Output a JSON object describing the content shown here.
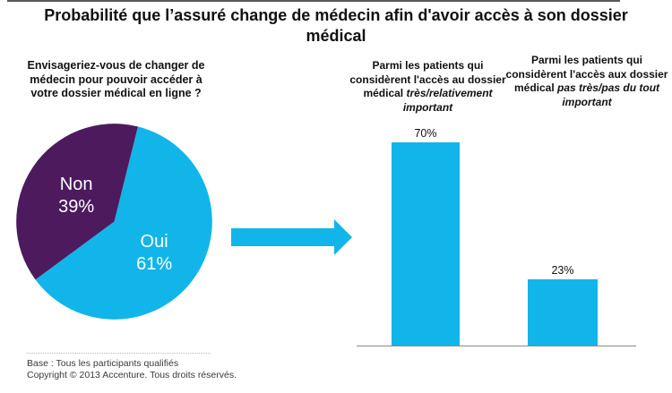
{
  "title": "Probabilité que l’assuré change de médecin afin d'avoir accès à son dossier médical",
  "colors": {
    "cyan": "#12b5e9",
    "purple": "#4d1a5e",
    "axis": "#8a8a8a"
  },
  "arrow": {
    "meaning": "leads-to",
    "color": "#12b5e9"
  },
  "chart_data": [
    {
      "type": "pie",
      "title": "Envisageriez-vous de changer de médecin pour pouvoir accéder à votre dossier médical en ligne ?",
      "start_angle_deg": 14,
      "legend_position": "inside",
      "slices": [
        {
          "label": "Oui",
          "value": 61,
          "display": "61%",
          "color": "#12b5e9"
        },
        {
          "label": "Non",
          "value": 39,
          "display": "39%",
          "color": "#4d1a5e"
        }
      ]
    },
    {
      "type": "bar",
      "bar_color": "#12b5e9",
      "ylim": [
        0,
        100
      ],
      "grid": false,
      "categories": [
        {
          "regular": "Parmi les patients qui considèrent l'accès au dossier médical ",
          "italic": "très/relativement important"
        },
        {
          "regular": "Parmi les patients qui considèrent l'accès aux dossier médical ",
          "italic": "pas très/pas du tout important"
        }
      ],
      "values": [
        70,
        23
      ],
      "value_labels": [
        "70%",
        "23%"
      ]
    }
  ],
  "footer": {
    "base": "Base : Tous les participants qualifiés",
    "copyright": "Copyright © 2013 Accenture. Tous droits réservés."
  }
}
